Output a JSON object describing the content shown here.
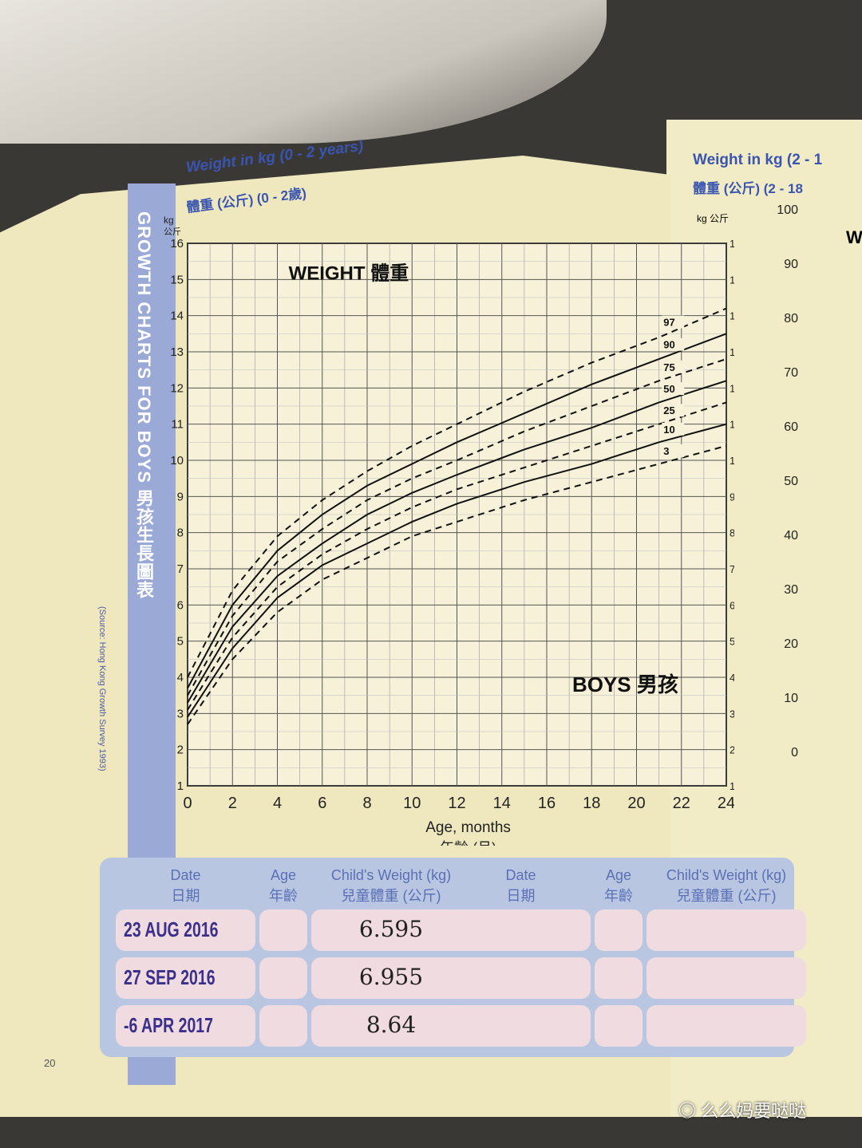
{
  "sidebar": {
    "title": "GROWTH CHARTS FOR BOYS 男孩生長圖表",
    "source": "(Source: Hong Kong Growth Survey 1993)"
  },
  "header": {
    "title_en": "Weight in kg (0 - 2 years)",
    "title_zh": "體重 (公斤) (0 - 2歲)"
  },
  "chart_data": {
    "type": "line",
    "title": "WEIGHT 體重",
    "subtitle": "BOYS 男孩",
    "xlabel": "Age, months",
    "xlabel_zh": "年齡 (月)",
    "ylabel": "kg",
    "ylabel_zh": "公斤",
    "xlim": [
      0,
      24
    ],
    "ylim": [
      1,
      16
    ],
    "xticks": [
      0,
      2,
      4,
      6,
      8,
      10,
      12,
      14,
      16,
      18,
      20,
      22,
      24
    ],
    "yticks": [
      1,
      2,
      3,
      4,
      5,
      6,
      7,
      8,
      9,
      10,
      11,
      12,
      13,
      14,
      15,
      16
    ],
    "grid": true,
    "x": [
      0,
      2,
      4,
      6,
      8,
      10,
      12,
      15,
      18,
      21,
      24
    ],
    "series": [
      {
        "name": "97",
        "style": "dashed",
        "values": [
          4.0,
          6.4,
          7.9,
          8.9,
          9.7,
          10.4,
          11.0,
          11.9,
          12.7,
          13.4,
          14.2
        ]
      },
      {
        "name": "90",
        "style": "solid",
        "values": [
          3.7,
          6.0,
          7.5,
          8.5,
          9.3,
          9.9,
          10.5,
          11.3,
          12.1,
          12.8,
          13.5
        ]
      },
      {
        "name": "75",
        "style": "dashed",
        "values": [
          3.5,
          5.7,
          7.2,
          8.1,
          8.9,
          9.5,
          10.0,
          10.8,
          11.5,
          12.2,
          12.8
        ]
      },
      {
        "name": "50",
        "style": "solid",
        "values": [
          3.3,
          5.4,
          6.8,
          7.7,
          8.5,
          9.1,
          9.6,
          10.3,
          10.9,
          11.6,
          12.2
        ]
      },
      {
        "name": "25",
        "style": "dashed",
        "values": [
          3.1,
          5.1,
          6.5,
          7.4,
          8.1,
          8.7,
          9.2,
          9.8,
          10.4,
          11.0,
          11.6
        ]
      },
      {
        "name": "10",
        "style": "solid",
        "values": [
          2.9,
          4.8,
          6.2,
          7.1,
          7.7,
          8.3,
          8.8,
          9.4,
          9.9,
          10.5,
          11.0
        ]
      },
      {
        "name": "3",
        "style": "dashed",
        "values": [
          2.7,
          4.5,
          5.8,
          6.7,
          7.3,
          7.9,
          8.3,
          8.9,
          9.4,
          9.9,
          10.4
        ]
      }
    ]
  },
  "table": {
    "headers": [
      {
        "en": "Date",
        "zh": "日期"
      },
      {
        "en": "Age",
        "zh": "年齡"
      },
      {
        "en": "Child's Weight (kg)",
        "zh": "兒童體重 (公斤)"
      }
    ],
    "rows": [
      {
        "date": "23 AUG 2016",
        "age": "",
        "weight": "6.595"
      },
      {
        "date": "27 SEP 2016",
        "age": "",
        "weight": "6.955"
      },
      {
        "date": "-6 APR 2017",
        "age": "",
        "weight": "8.64"
      }
    ]
  },
  "page_number": "20",
  "right_page": {
    "title_en": "Weight in kg (2 - 1",
    "title_zh": "體重 (公斤) (2 - 18",
    "unit": "kg 公斤",
    "yticks": [
      "100",
      "90",
      "80",
      "70",
      "60",
      "50",
      "40",
      "30",
      "20",
      "10",
      "0"
    ],
    "heading": "W"
  },
  "watermark": "么么妈要哒哒"
}
